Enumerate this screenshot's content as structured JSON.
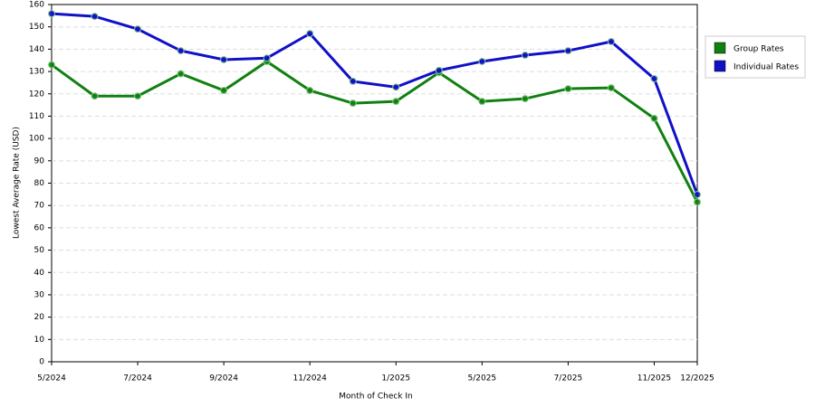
{
  "chart_data": {
    "type": "line",
    "x_label": "Month of Check In",
    "y_label": "Lowest Average Rate (USD)",
    "categories": [
      "5/2024",
      null,
      "7/2024",
      null,
      "9/2024",
      null,
      "11/2024",
      null,
      "1/2025",
      null,
      "5/2025",
      null,
      "7/2025",
      null,
      "11/2025",
      "12/2025"
    ],
    "series": [
      {
        "name": "Group Rates",
        "color": "#108010",
        "values": [
          133,
          119,
          119,
          129,
          121.5,
          134.5,
          121.5,
          115.8,
          116.6,
          129.5,
          116.6,
          117.8,
          122.3,
          122.7,
          109,
          71.5
        ]
      },
      {
        "name": "Individual Rates",
        "color": "#1010c8",
        "values": [
          155.9,
          154.7,
          149,
          139.3,
          135.3,
          136,
          147,
          125.6,
          123,
          130.5,
          134.5,
          137.3,
          139.3,
          143.4,
          126.8,
          74.9
        ]
      }
    ],
    "ylim": [
      0,
      160
    ],
    "yticks": [
      0,
      10,
      20,
      30,
      40,
      50,
      60,
      70,
      80,
      90,
      100,
      110,
      120,
      130,
      140,
      150,
      160
    ],
    "grid": true,
    "legend": "right"
  }
}
